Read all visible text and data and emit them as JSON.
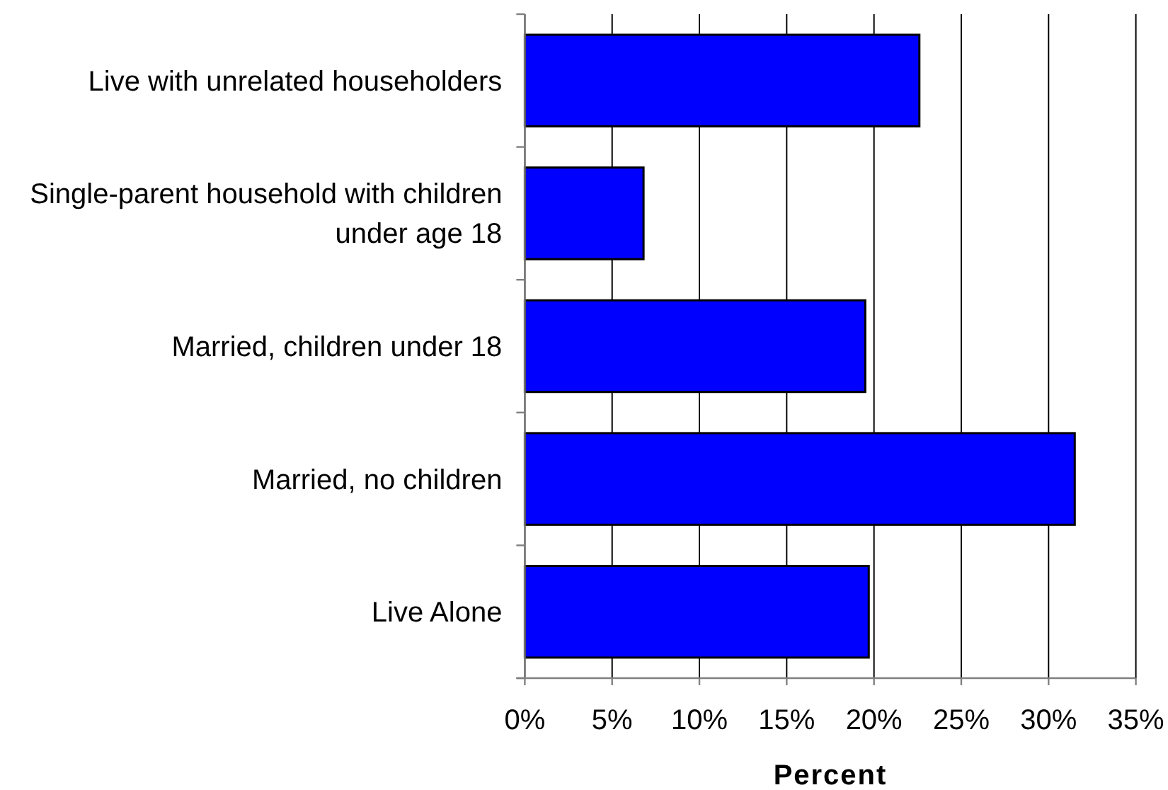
{
  "chart_data": {
    "type": "bar",
    "orientation": "horizontal",
    "categories": [
      "Live with unrelated householders",
      "Single-parent household with children under age 18",
      "Married, children under 18",
      "Married, no children",
      "Live Alone"
    ],
    "values": [
      22.6,
      6.8,
      19.5,
      31.5,
      19.7
    ],
    "color": "#0000ff",
    "xlim": [
      0,
      35
    ],
    "xticks": [
      {
        "value": 0,
        "label": "0%"
      },
      {
        "value": 5,
        "label": "5%"
      },
      {
        "value": 10,
        "label": "10%"
      },
      {
        "value": 15,
        "label": "15%"
      },
      {
        "value": 20,
        "label": "20%"
      },
      {
        "value": 25,
        "label": "25%"
      },
      {
        "value": 30,
        "label": "30%"
      },
      {
        "value": 35,
        "label": "35%"
      }
    ],
    "xlabel": "Percent",
    "grid": "x"
  }
}
